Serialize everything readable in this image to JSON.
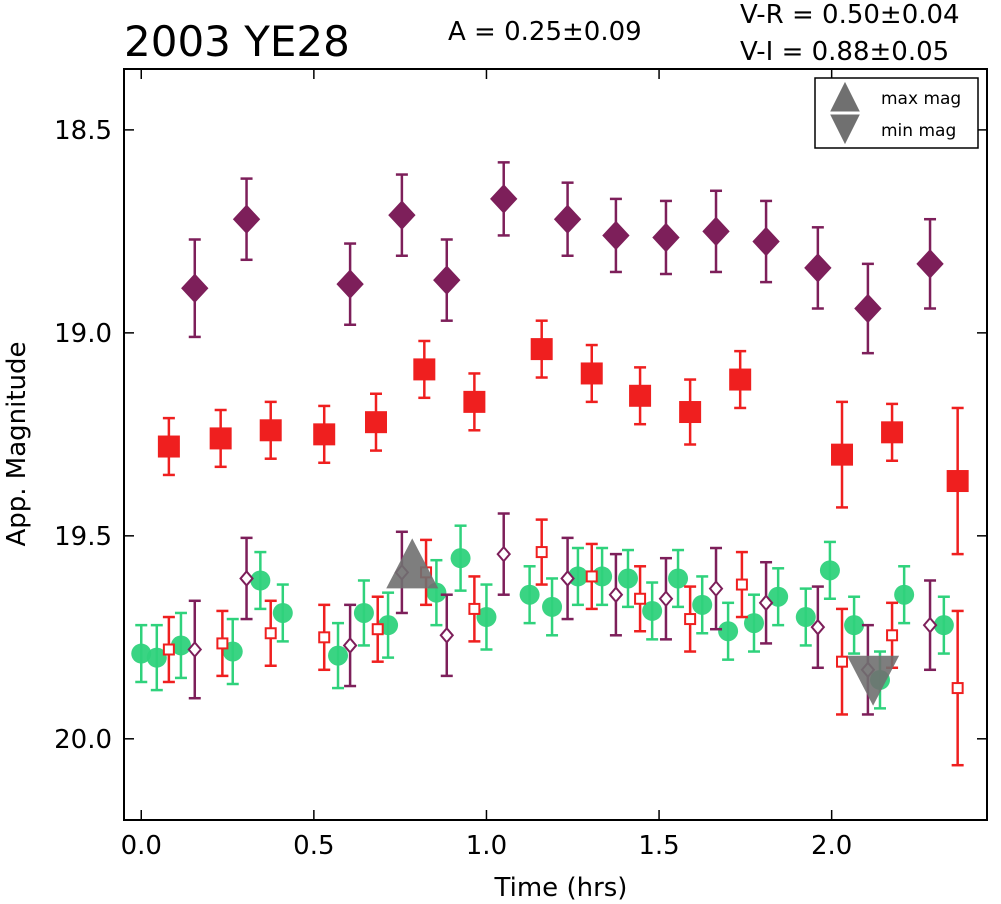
{
  "chart_data": {
    "type": "scatter",
    "title": "2003 YE28",
    "amplitude_label": "A  = 0.25±0.09",
    "color_index_labels": [
      "V-R = 0.50±0.04",
      "V-I  = 0.88±0.05"
    ],
    "xlabel": "Time (hrs)",
    "ylabel": "App. Magnitude",
    "xlim": [
      -0.05,
      2.45
    ],
    "ylim": [
      20.2,
      18.35
    ],
    "y_inverted": true,
    "grid": false,
    "x_ticks": [
      "0.0",
      "0.5",
      "1.0",
      "1.5",
      "2.0"
    ],
    "y_ticks": [
      "18.5",
      "19.0",
      "19.5",
      "20.0"
    ],
    "legend": {
      "placement": "top-right",
      "items": [
        {
          "label": "max mag",
          "marker": "triangle-up",
          "color": "#707070"
        },
        {
          "label": "min mag",
          "marker": "triangle-down",
          "color": "#707070"
        }
      ]
    },
    "colors": {
      "purple": "#7d1f5a",
      "red": "#ef1f1f",
      "green": "#2fd27c",
      "gray": "#707070"
    },
    "series": [
      {
        "marker": "diamond-filled",
        "color": "#7d1f5a",
        "points": [
          {
            "x": 0.155,
            "y": 18.89,
            "err": 0.12
          },
          {
            "x": 0.305,
            "y": 18.72,
            "err": 0.1
          },
          {
            "x": 0.605,
            "y": 18.88,
            "err": 0.1
          },
          {
            "x": 0.755,
            "y": 18.71,
            "err": 0.1
          },
          {
            "x": 0.885,
            "y": 18.87,
            "err": 0.1
          },
          {
            "x": 1.05,
            "y": 18.67,
            "err": 0.09
          },
          {
            "x": 1.235,
            "y": 18.72,
            "err": 0.09
          },
          {
            "x": 1.375,
            "y": 18.76,
            "err": 0.09
          },
          {
            "x": 1.52,
            "y": 18.765,
            "err": 0.09
          },
          {
            "x": 1.665,
            "y": 18.75,
            "err": 0.1
          },
          {
            "x": 1.81,
            "y": 18.775,
            "err": 0.1
          },
          {
            "x": 1.96,
            "y": 18.84,
            "err": 0.1
          },
          {
            "x": 2.105,
            "y": 18.94,
            "err": 0.11
          },
          {
            "x": 2.285,
            "y": 18.83,
            "err": 0.11
          }
        ]
      },
      {
        "marker": "square-filled",
        "color": "#ef1f1f",
        "points": [
          {
            "x": 0.08,
            "y": 19.28,
            "err": 0.07
          },
          {
            "x": 0.23,
            "y": 19.26,
            "err": 0.07
          },
          {
            "x": 0.375,
            "y": 19.24,
            "err": 0.07
          },
          {
            "x": 0.53,
            "y": 19.25,
            "err": 0.07
          },
          {
            "x": 0.68,
            "y": 19.22,
            "err": 0.07
          },
          {
            "x": 0.82,
            "y": 19.09,
            "err": 0.07
          },
          {
            "x": 0.965,
            "y": 19.17,
            "err": 0.07
          },
          {
            "x": 1.16,
            "y": 19.04,
            "err": 0.07
          },
          {
            "x": 1.305,
            "y": 19.1,
            "err": 0.07
          },
          {
            "x": 1.445,
            "y": 19.155,
            "err": 0.07
          },
          {
            "x": 1.59,
            "y": 19.195,
            "err": 0.08
          },
          {
            "x": 1.735,
            "y": 19.115,
            "err": 0.07
          },
          {
            "x": 2.03,
            "y": 19.3,
            "err": 0.13
          },
          {
            "x": 2.175,
            "y": 19.245,
            "err": 0.07
          },
          {
            "x": 2.365,
            "y": 19.365,
            "err": 0.18
          }
        ]
      },
      {
        "marker": "circle-filled",
        "color": "#2fd27c",
        "points": [
          {
            "x": 0.0,
            "y": 19.79,
            "err": 0.07
          },
          {
            "x": 0.045,
            "y": 19.8,
            "err": 0.08
          },
          {
            "x": 0.115,
            "y": 19.77,
            "err": 0.08
          },
          {
            "x": 0.265,
            "y": 19.785,
            "err": 0.08
          },
          {
            "x": 0.345,
            "y": 19.61,
            "err": 0.07
          },
          {
            "x": 0.41,
            "y": 19.69,
            "err": 0.07
          },
          {
            "x": 0.57,
            "y": 19.795,
            "err": 0.08
          },
          {
            "x": 0.645,
            "y": 19.69,
            "err": 0.08
          },
          {
            "x": 0.715,
            "y": 19.72,
            "err": 0.08
          },
          {
            "x": 0.855,
            "y": 19.64,
            "err": 0.08
          },
          {
            "x": 0.925,
            "y": 19.555,
            "err": 0.08
          },
          {
            "x": 1.0,
            "y": 19.7,
            "err": 0.08
          },
          {
            "x": 1.125,
            "y": 19.645,
            "err": 0.07
          },
          {
            "x": 1.19,
            "y": 19.675,
            "err": 0.07
          },
          {
            "x": 1.265,
            "y": 19.6,
            "err": 0.07
          },
          {
            "x": 1.335,
            "y": 19.6,
            "err": 0.07
          },
          {
            "x": 1.41,
            "y": 19.605,
            "err": 0.07
          },
          {
            "x": 1.48,
            "y": 19.685,
            "err": 0.07
          },
          {
            "x": 1.555,
            "y": 19.605,
            "err": 0.07
          },
          {
            "x": 1.625,
            "y": 19.67,
            "err": 0.07
          },
          {
            "x": 1.7,
            "y": 19.735,
            "err": 0.07
          },
          {
            "x": 1.775,
            "y": 19.715,
            "err": 0.07
          },
          {
            "x": 1.845,
            "y": 19.65,
            "err": 0.07
          },
          {
            "x": 1.925,
            "y": 19.7,
            "err": 0.07
          },
          {
            "x": 1.995,
            "y": 19.585,
            "err": 0.07
          },
          {
            "x": 2.065,
            "y": 19.72,
            "err": 0.07
          },
          {
            "x": 2.14,
            "y": 19.855,
            "err": 0.07
          },
          {
            "x": 2.21,
            "y": 19.645,
            "err": 0.07
          },
          {
            "x": 2.325,
            "y": 19.72,
            "err": 0.07
          }
        ]
      },
      {
        "marker": "square-open",
        "color": "#ef1f1f",
        "points": [
          {
            "x": 0.08,
            "y": 19.78,
            "err": 0.08
          },
          {
            "x": 0.235,
            "y": 19.765,
            "err": 0.08
          },
          {
            "x": 0.375,
            "y": 19.74,
            "err": 0.08
          },
          {
            "x": 0.53,
            "y": 19.75,
            "err": 0.08
          },
          {
            "x": 0.685,
            "y": 19.73,
            "err": 0.08
          },
          {
            "x": 0.825,
            "y": 19.59,
            "err": 0.08
          },
          {
            "x": 0.965,
            "y": 19.68,
            "err": 0.08
          },
          {
            "x": 1.16,
            "y": 19.54,
            "err": 0.08
          },
          {
            "x": 1.305,
            "y": 19.6,
            "err": 0.08
          },
          {
            "x": 1.445,
            "y": 19.655,
            "err": 0.08
          },
          {
            "x": 1.59,
            "y": 19.705,
            "err": 0.08
          },
          {
            "x": 1.74,
            "y": 19.62,
            "err": 0.08
          },
          {
            "x": 2.03,
            "y": 19.81,
            "err": 0.13
          },
          {
            "x": 2.175,
            "y": 19.745,
            "err": 0.08
          },
          {
            "x": 2.365,
            "y": 19.875,
            "err": 0.19
          }
        ]
      },
      {
        "marker": "diamond-open",
        "color": "#7d1f5a",
        "points": [
          {
            "x": 0.155,
            "y": 19.78,
            "err": 0.12
          },
          {
            "x": 0.305,
            "y": 19.605,
            "err": 0.1
          },
          {
            "x": 0.605,
            "y": 19.77,
            "err": 0.1
          },
          {
            "x": 0.755,
            "y": 19.59,
            "err": 0.1
          },
          {
            "x": 0.885,
            "y": 19.745,
            "err": 0.1
          },
          {
            "x": 1.05,
            "y": 19.545,
            "err": 0.1
          },
          {
            "x": 1.235,
            "y": 19.605,
            "err": 0.1
          },
          {
            "x": 1.375,
            "y": 19.645,
            "err": 0.1
          },
          {
            "x": 1.52,
            "y": 19.655,
            "err": 0.1
          },
          {
            "x": 1.665,
            "y": 19.63,
            "err": 0.1
          },
          {
            "x": 1.81,
            "y": 19.665,
            "err": 0.1
          },
          {
            "x": 1.96,
            "y": 19.725,
            "err": 0.1
          },
          {
            "x": 2.105,
            "y": 19.83,
            "err": 0.11
          },
          {
            "x": 2.285,
            "y": 19.72,
            "err": 0.11
          }
        ]
      },
      {
        "marker": "triangle-up",
        "color": "#707070",
        "points": [
          {
            "x": 0.785,
            "y": 19.6
          }
        ]
      },
      {
        "marker": "triangle-down",
        "color": "#707070",
        "points": [
          {
            "x": 2.12,
            "y": 19.83
          }
        ]
      }
    ]
  }
}
